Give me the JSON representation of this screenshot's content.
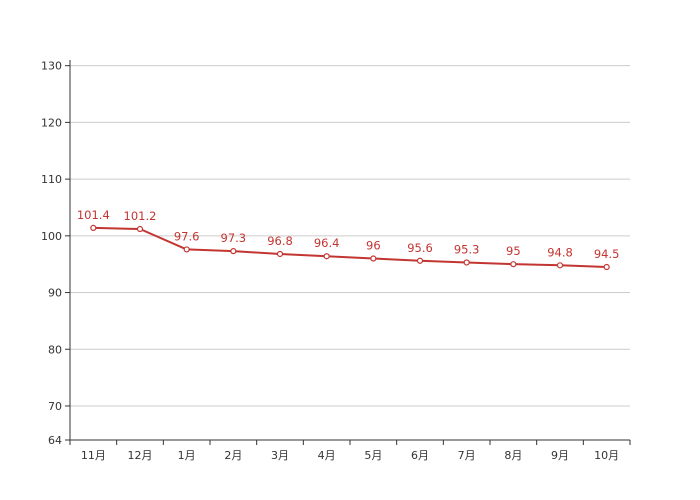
{
  "chart_data": {
    "type": "line",
    "categories": [
      "11月",
      "12月",
      "1月",
      "2月",
      "3月",
      "4月",
      "5月",
      "6月",
      "7月",
      "8月",
      "9月",
      "10月"
    ],
    "series": [
      {
        "values": [
          101.4,
          101.2,
          97.6,
          97.3,
          96.8,
          96.4,
          96,
          95.6,
          95.3,
          95,
          94.8,
          94.5
        ]
      }
    ],
    "data_labels": [
      "101.4",
      "101.2",
      "97.6",
      "97.3",
      "96.8",
      "96.4",
      "96",
      "95.6",
      "95.3",
      "95",
      "94.8",
      "94.5"
    ],
    "y_ticks": [
      64,
      70,
      80,
      90,
      100,
      110,
      120,
      130
    ],
    "y_tick_labels": [
      "64",
      "70",
      "80",
      "90",
      "100",
      "110",
      "120",
      "130"
    ],
    "ylim": [
      64,
      131
    ],
    "grid": true,
    "legend": "none",
    "colors": {
      "line": "#c23531",
      "grid": "#cccccc",
      "axis": "#333333",
      "text": "#333333",
      "marker_fill": "#ffffff"
    }
  }
}
